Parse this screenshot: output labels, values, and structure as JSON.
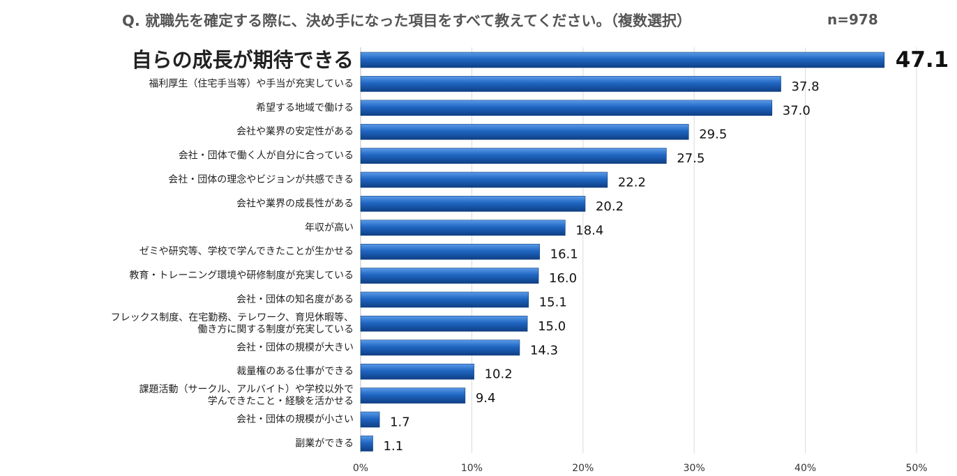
{
  "title": {
    "question": "Q. 就職先を確定する際に、決め手になった項目をすべて教えてください。（複数選択）",
    "sample": "n=978"
  },
  "colors": {
    "bar": "#1f66c2",
    "highlight_text": "#ff0000",
    "grid": "#d9d9d9"
  },
  "chart_data": {
    "type": "bar",
    "orientation": "horizontal",
    "title": "Q. 就職先を確定する際に、決め手になった項目をすべて教えてください。（複数選択）",
    "xlabel": "",
    "ylabel": "",
    "xlim": [
      0,
      50
    ],
    "x_ticks": [
      "0%",
      "10%",
      "20%",
      "30%",
      "40%",
      "50%"
    ],
    "grid": true,
    "highlight_index": 0,
    "categories": [
      [
        "自らの成長が期待できる"
      ],
      [
        "福利厚生（住宅手当等）や手当が充実している"
      ],
      [
        "希望する地域で働ける"
      ],
      [
        "会社や業界の安定性がある"
      ],
      [
        "会社・団体で働く人が自分に合っている"
      ],
      [
        "会社・団体の理念やビジョンが共感できる"
      ],
      [
        "会社や業界の成長性がある"
      ],
      [
        "年収が高い"
      ],
      [
        "ゼミや研究等、学校で学んできたことが生かせる"
      ],
      [
        "教育・トレーニング環境や研修制度が充実している"
      ],
      [
        "会社・団体の知名度がある"
      ],
      [
        "フレックス制度、在宅勤務、テレワーク、育児休暇等、",
        "働き方に関する制度が充実している"
      ],
      [
        "会社・団体の規模が大きい"
      ],
      [
        "裁量権のある仕事ができる"
      ],
      [
        "課題活動（サークル、アルバイト）や学校以外で",
        "学んできたこと・経験を活かせる"
      ],
      [
        "会社・団体の規模が小さい"
      ],
      [
        "副業ができる"
      ]
    ],
    "values": [
      47.1,
      37.8,
      37.0,
      29.5,
      27.5,
      22.2,
      20.2,
      18.4,
      16.1,
      16.0,
      15.1,
      15.0,
      14.3,
      10.2,
      9.4,
      1.7,
      1.1
    ],
    "value_labels": [
      "47.1",
      "37.8",
      "37.0",
      "29.5",
      "27.5",
      "22.2",
      "20.2",
      "18.4",
      "16.1",
      "16.0",
      "15.1",
      "15.0",
      "14.3",
      "10.2",
      "9.4",
      "1.7",
      "1.1"
    ]
  }
}
